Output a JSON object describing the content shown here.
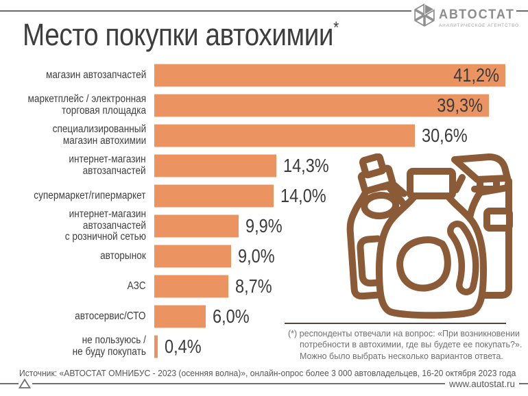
{
  "header": {
    "title": "Место покупки автохимии",
    "title_mark": "*",
    "logo": {
      "name": "АВТОСТАТ",
      "subtitle": "АНАЛИТИЧЕСКОЕ АГЕНТСТВО"
    }
  },
  "chart_data": {
    "type": "bar",
    "orientation": "horizontal",
    "title": "Место покупки автохимии*",
    "unit": "%",
    "categories": [
      "магазин автозапчастей",
      "маркетплейс / электронная\nторговая площадка",
      "специализированный\nмагазин автохимии",
      "интернет-магазин\nавтозапчастей",
      "супермаркет/гипермаркет",
      "интернет-магазин автозапчастей\nс розничной сетью",
      "авторынок",
      "АЗС",
      "автосервис/СТО",
      "не пользуюсь /\nне буду покупать"
    ],
    "values": [
      41.2,
      39.3,
      30.6,
      14.3,
      14.0,
      9.9,
      9.0,
      8.7,
      6.0,
      0.4
    ],
    "value_labels": [
      "41,2%",
      "39,3%",
      "30,6%",
      "14,3%",
      "14,0%",
      "9,9%",
      "9,0%",
      "8,7%",
      "6,0%",
      "0,4%"
    ],
    "value_inside_bar": [
      true,
      true,
      false,
      false,
      false,
      false,
      false,
      false,
      false,
      false
    ],
    "xlim": [
      0,
      41.2
    ],
    "bar_color": "#EC9461",
    "grid": false,
    "legend": false
  },
  "footnote": {
    "text": "(*) респонденты отвечали на вопрос: «При возникновении\nпотребности в автохимии, где вы будете ее покупать?».\nМожно было выбрать несколько вариантов ответа."
  },
  "footer": {
    "source": "Источник: «АВТОСТАТ ОМНИБУС - 2023 (осенняя волна)», онлайн-опрос более 3 000 автовладельцев, 16-20 октября 2023 года",
    "site": "www.autostat.ru"
  },
  "illustration": {
    "name": "auto-chemicals-bottles",
    "color": "#8B5A36"
  },
  "colors": {
    "bar": "#EC9461",
    "text": "#3B3B3B",
    "rule": "#6E6E6E",
    "logo": "#8D8D8D",
    "illustration": "#8B5A36"
  }
}
